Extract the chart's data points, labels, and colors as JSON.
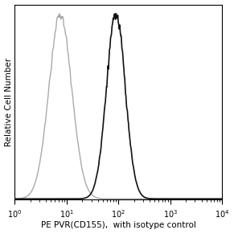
{
  "xlabel": "PE PVR(CD155),  with isotype control",
  "ylabel": "Relative Cell Number",
  "xlim": [
    1.0,
    10000.0
  ],
  "ylim": [
    0,
    1.05
  ],
  "background_color": "#ffffff",
  "isotype_color": "#aaaaaa",
  "antibody_color": "#111111",
  "isotype_peak_log10": 0.88,
  "isotype_peak_sigma": 0.22,
  "antibody_peak_log10": 1.95,
  "antibody_peak_sigma": 0.18,
  "xlabel_fontsize": 7.5,
  "ylabel_fontsize": 7.5,
  "tick_fontsize": 7
}
